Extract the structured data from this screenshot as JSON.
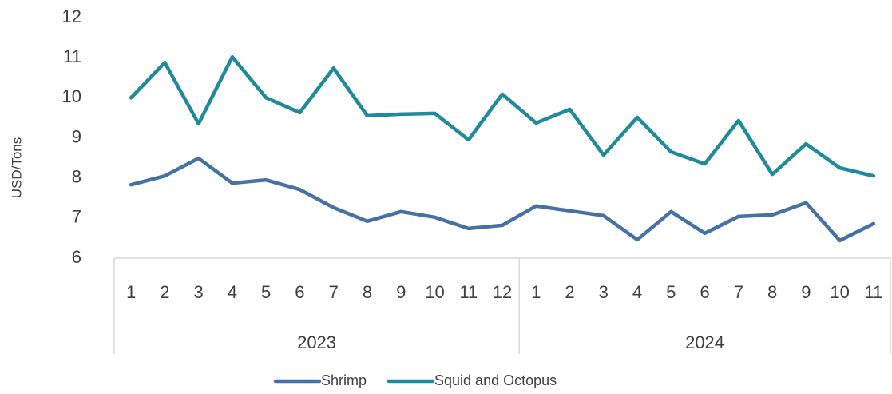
{
  "chart_data": {
    "type": "line",
    "y_label": "USD/Tons",
    "category_groups": [
      {
        "name": "2023",
        "categories": [
          1,
          2,
          3,
          4,
          5,
          6,
          7,
          8,
          9,
          10,
          11,
          12
        ]
      },
      {
        "name": "2024",
        "categories": [
          1,
          2,
          3,
          4,
          5,
          6,
          7,
          8,
          9,
          10,
          11
        ]
      }
    ],
    "series": [
      {
        "name": "Shrimp",
        "color": "#4471a6",
        "values": [
          7.83,
          8.05,
          8.49,
          7.87,
          7.95,
          7.71,
          7.26,
          6.92,
          7.16,
          7.02,
          6.74,
          6.82,
          7.3,
          7.18,
          7.06,
          6.46,
          7.16,
          6.62,
          7.04,
          7.08,
          7.38,
          6.44,
          6.86
        ]
      },
      {
        "name": "Squid and Octopus",
        "color": "#1e8a9b",
        "values": [
          10.0,
          10.88,
          9.35,
          11.02,
          10.0,
          9.63,
          10.74,
          9.55,
          9.59,
          9.61,
          8.95,
          10.09,
          9.37,
          9.71,
          8.57,
          9.51,
          8.65,
          8.35,
          9.43,
          8.09,
          8.85,
          8.25,
          8.05
        ]
      }
    ],
    "ylim": [
      6,
      12
    ],
    "yticks": [
      6,
      7,
      8,
      9,
      10,
      11,
      12
    ],
    "grid": false,
    "legend": "bottom"
  }
}
